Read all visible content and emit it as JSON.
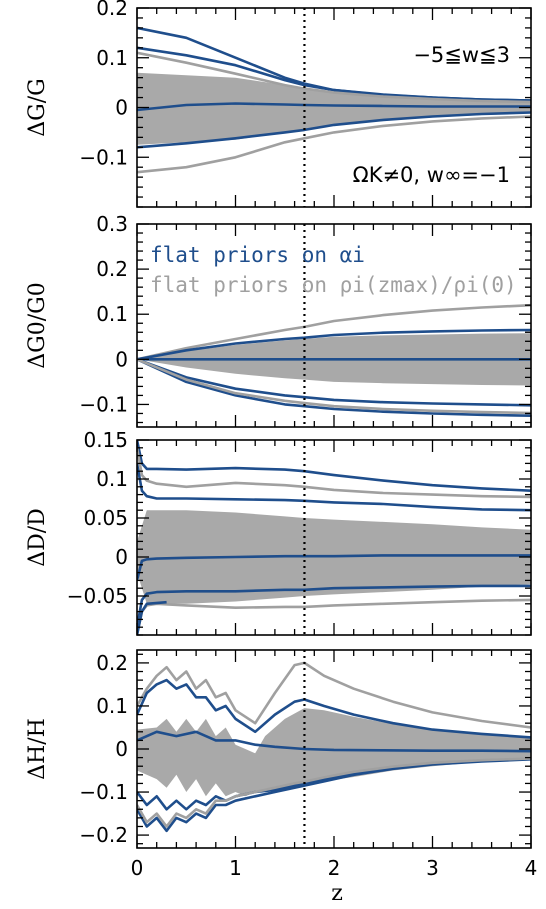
{
  "colors": {
    "blue": "#1f4e8c",
    "gray": "#a0a0a0",
    "band": "#a9a9a9",
    "axis": "#000000"
  },
  "chart_data": [
    {
      "type": "line",
      "ylabel": "ΔG/G",
      "xlabel": "",
      "xlim": [
        0,
        4
      ],
      "ylim": [
        -0.2,
        0.2
      ],
      "yticks": [
        -0.1,
        0,
        0.1,
        0.2
      ],
      "ytick_labels": [
        "−0.1",
        "0",
        "0.1",
        "0.2"
      ],
      "vline_z": 1.7,
      "annotations": [
        "−5≦w≦3",
        "ΩK≠0,  w∞=−1"
      ],
      "band": {
        "x": [
          0,
          0.5,
          1,
          1.5,
          1.7,
          2,
          2.5,
          3,
          3.5,
          4
        ],
        "lower": [
          -0.075,
          -0.07,
          -0.065,
          -0.05,
          -0.045,
          -0.035,
          -0.025,
          -0.02,
          -0.015,
          -0.012
        ],
        "upper": [
          0.07,
          0.065,
          0.06,
          0.045,
          0.04,
          0.03,
          0.022,
          0.018,
          0.014,
          0.012
        ]
      },
      "series": [
        {
          "color": "blue",
          "x": [
            0,
            0.5,
            1,
            1.5,
            1.7,
            2,
            2.5,
            3,
            3.5,
            4
          ],
          "y": [
            0.16,
            0.14,
            0.1,
            0.06,
            0.048,
            0.035,
            0.025,
            0.02,
            0.016,
            0.014
          ]
        },
        {
          "color": "blue",
          "x": [
            0,
            0.5,
            1,
            1.5,
            1.7,
            2,
            2.5,
            3,
            3.5,
            4
          ],
          "y": [
            0.12,
            0.105,
            0.085,
            0.055,
            0.045,
            0.035,
            0.026,
            0.02,
            0.016,
            0.014
          ]
        },
        {
          "color": "gray",
          "x": [
            0,
            0.5,
            1,
            1.5,
            1.7,
            2,
            2.5,
            3,
            3.5,
            4
          ],
          "y": [
            0.11,
            0.09,
            0.068,
            0.045,
            0.038,
            0.03,
            0.022,
            0.017,
            0.013,
            0.011
          ]
        },
        {
          "color": "blue",
          "x": [
            0,
            0.5,
            1,
            1.5,
            1.7,
            2,
            2.5,
            3,
            3.5,
            4
          ],
          "y": [
            -0.005,
            0.005,
            0.008,
            0.006,
            0.005,
            0.004,
            0.003,
            0.002,
            0.002,
            0.002
          ]
        },
        {
          "color": "blue",
          "x": [
            0,
            0.5,
            1,
            1.5,
            1.7,
            2,
            2.5,
            3,
            3.5,
            4
          ],
          "y": [
            -0.08,
            -0.072,
            -0.062,
            -0.05,
            -0.045,
            -0.035,
            -0.025,
            -0.018,
            -0.013,
            -0.01
          ]
        },
        {
          "color": "gray",
          "x": [
            0,
            0.5,
            1,
            1.5,
            1.7,
            2,
            2.5,
            3,
            3.5,
            4
          ],
          "y": [
            -0.13,
            -0.12,
            -0.1,
            -0.07,
            -0.062,
            -0.05,
            -0.037,
            -0.028,
            -0.022,
            -0.018
          ]
        }
      ]
    },
    {
      "type": "line",
      "ylabel": "ΔG0/G0",
      "xlabel": "",
      "xlim": [
        0,
        4
      ],
      "ylim": [
        -0.15,
        0.3
      ],
      "yticks": [
        -0.1,
        0,
        0.1,
        0.2,
        0.3
      ],
      "ytick_labels": [
        "−0.1",
        "0",
        "0.1",
        "0.2",
        "0.3"
      ],
      "vline_z": 1.7,
      "legend": [
        "flat priors on αi",
        "flat priors on ρi(zmax)/ρi(0)"
      ],
      "band": {
        "x": [
          0,
          0.5,
          1,
          1.5,
          1.7,
          2,
          2.5,
          3,
          3.5,
          4
        ],
        "lower": [
          0,
          -0.018,
          -0.032,
          -0.042,
          -0.045,
          -0.05,
          -0.053,
          -0.055,
          -0.057,
          -0.058
        ],
        "upper": [
          0,
          0.018,
          0.032,
          0.042,
          0.045,
          0.05,
          0.053,
          0.055,
          0.057,
          0.058
        ]
      },
      "series": [
        {
          "color": "gray",
          "x": [
            0,
            0.5,
            1,
            1.5,
            1.7,
            2,
            2.5,
            3,
            3.5,
            4
          ],
          "y": [
            0,
            0.025,
            0.045,
            0.065,
            0.072,
            0.085,
            0.098,
            0.108,
            0.115,
            0.12
          ]
        },
        {
          "color": "blue",
          "x": [
            0,
            0.5,
            1,
            1.5,
            1.7,
            2,
            2.5,
            3,
            3.5,
            4
          ],
          "y": [
            0,
            0.02,
            0.035,
            0.045,
            0.048,
            0.054,
            0.059,
            0.062,
            0.064,
            0.065
          ]
        },
        {
          "color": "blue",
          "x": [
            0,
            0.5,
            1,
            1.5,
            1.7,
            2,
            2.5,
            3,
            3.5,
            4
          ],
          "y": [
            0,
            0,
            0,
            0,
            0,
            0,
            0,
            0,
            0,
            0
          ]
        },
        {
          "color": "blue",
          "x": [
            0,
            0.5,
            1,
            1.5,
            1.7,
            2,
            2.5,
            3,
            3.5,
            4
          ],
          "y": [
            0,
            -0.04,
            -0.065,
            -0.08,
            -0.084,
            -0.09,
            -0.095,
            -0.098,
            -0.1,
            -0.102
          ]
        },
        {
          "color": "blue",
          "x": [
            0,
            0.5,
            1,
            1.5,
            1.7,
            2,
            2.5,
            3,
            3.5,
            4
          ],
          "y": [
            0,
            -0.05,
            -0.08,
            -0.1,
            -0.104,
            -0.11,
            -0.116,
            -0.12,
            -0.123,
            -0.125
          ]
        },
        {
          "color": "gray",
          "x": [
            0,
            0.5,
            1,
            1.5,
            1.7,
            2,
            2.5,
            3,
            3.5,
            4
          ],
          "y": [
            0,
            -0.045,
            -0.075,
            -0.092,
            -0.097,
            -0.104,
            -0.11,
            -0.114,
            -0.117,
            -0.119
          ]
        }
      ]
    },
    {
      "type": "line",
      "ylabel": "ΔD/D",
      "xlabel": "",
      "xlim": [
        0,
        4
      ],
      "ylim": [
        -0.1,
        0.15
      ],
      "yticks": [
        -0.05,
        0,
        0.05,
        0.1,
        0.15
      ],
      "ytick_labels": [
        "−0.05",
        "0",
        "0.05",
        "0.1",
        "0.15"
      ],
      "vline_z": 1.7,
      "band": {
        "x": [
          0,
          0.1,
          0.5,
          1,
          1.5,
          1.7,
          2,
          2.5,
          3,
          3.5,
          4
        ],
        "lower": [
          -0.02,
          -0.06,
          -0.06,
          -0.057,
          -0.052,
          -0.05,
          -0.048,
          -0.045,
          -0.042,
          -0.038,
          -0.035
        ],
        "upper": [
          0.02,
          0.06,
          0.06,
          0.057,
          0.052,
          0.05,
          0.048,
          0.045,
          0.042,
          0.038,
          0.035
        ]
      },
      "series": [
        {
          "color": "blue",
          "x": [
            0,
            0.05,
            0.1,
            0.2,
            0.5,
            1,
            1.5,
            1.7,
            2,
            2.5,
            3,
            3.5,
            4
          ],
          "y": [
            0.15,
            0.12,
            0.113,
            0.113,
            0.112,
            0.114,
            0.112,
            0.11,
            0.105,
            0.098,
            0.092,
            0.088,
            0.085
          ]
        },
        {
          "color": "gray",
          "x": [
            0,
            0.05,
            0.1,
            0.2,
            0.5,
            1,
            1.5,
            1.7,
            2,
            2.5,
            3,
            3.5,
            4
          ],
          "y": [
            0.14,
            0.105,
            0.098,
            0.094,
            0.09,
            0.095,
            0.092,
            0.09,
            0.086,
            0.082,
            0.08,
            0.078,
            0.077
          ]
        },
        {
          "color": "blue",
          "x": [
            0,
            0.05,
            0.1,
            0.2,
            0.5,
            1,
            1.5,
            1.7,
            2,
            2.5,
            3,
            3.5,
            4
          ],
          "y": [
            0.12,
            0.085,
            0.078,
            0.075,
            0.075,
            0.074,
            0.073,
            0.072,
            0.07,
            0.068,
            0.064,
            0.061,
            0.06
          ]
        },
        {
          "color": "blue",
          "x": [
            0,
            0.05,
            0.1,
            0.2,
            0.5,
            1,
            1.5,
            1.7,
            2,
            2.5,
            3,
            3.5,
            4
          ],
          "y": [
            -0.03,
            -0.005,
            -0.003,
            -0.002,
            -0.001,
            0,
            0.001,
            0.001,
            0.001,
            0.002,
            0.002,
            0.002,
            0.002
          ]
        },
        {
          "color": "blue",
          "x": [
            0,
            0.05,
            0.1,
            0.2,
            0.5,
            1,
            1.5,
            1.7,
            2,
            2.5,
            3,
            3.5,
            4
          ],
          "y": [
            -0.09,
            -0.055,
            -0.047,
            -0.045,
            -0.044,
            -0.044,
            -0.042,
            -0.042,
            -0.04,
            -0.039,
            -0.038,
            -0.037,
            -0.037
          ]
        },
        {
          "color": "gray",
          "x": [
            0,
            0.05,
            0.1,
            0.2,
            0.5,
            1,
            1.5,
            1.7,
            2,
            2.5,
            3,
            3.5,
            4
          ],
          "y": [
            -0.1,
            -0.07,
            -0.062,
            -0.06,
            -0.062,
            -0.065,
            -0.064,
            -0.064,
            -0.062,
            -0.06,
            -0.058,
            -0.056,
            -0.055
          ]
        },
        {
          "color": "blue",
          "x": [
            0,
            0.05,
            0.1,
            0.3
          ],
          "y": [
            -0.1,
            -0.07,
            -0.06,
            -0.058
          ]
        }
      ]
    },
    {
      "type": "line",
      "ylabel": "ΔH/H",
      "xlabel": "z",
      "xlim": [
        0,
        4
      ],
      "ylim": [
        -0.23,
        0.23
      ],
      "xticks": [
        0,
        1,
        2,
        3,
        4
      ],
      "xtick_labels": [
        "0",
        "1",
        "2",
        "3",
        "4"
      ],
      "yticks": [
        -0.2,
        -0.1,
        0,
        0.1,
        0.2
      ],
      "ytick_labels": [
        "−0.2",
        "−0.1",
        "0",
        "0.1",
        "0.2"
      ],
      "vline_z": 1.7,
      "band": {
        "x": [
          0,
          0.2,
          0.3,
          0.4,
          0.5,
          0.6,
          0.7,
          0.8,
          0.9,
          1.0,
          1.1,
          1.2,
          1.3,
          1.5,
          1.7,
          1.9,
          2.2,
          2.6,
          3,
          3.5,
          4
        ],
        "lower": [
          -0.05,
          -0.07,
          -0.09,
          -0.06,
          -0.1,
          -0.07,
          -0.11,
          -0.08,
          -0.11,
          -0.1,
          -0.11,
          -0.1,
          -0.1,
          -0.095,
          -0.085,
          -0.075,
          -0.065,
          -0.05,
          -0.04,
          -0.03,
          -0.025
        ],
        "upper": [
          0.045,
          0.05,
          0.07,
          0.04,
          0.07,
          0.04,
          0.07,
          0.03,
          0.05,
          0.01,
          0.0,
          -0.01,
          0.03,
          0.07,
          0.095,
          0.09,
          0.075,
          0.058,
          0.045,
          0.035,
          0.028
        ]
      },
      "series": [
        {
          "color": "gray",
          "x": [
            0,
            0.1,
            0.2,
            0.3,
            0.4,
            0.5,
            0.6,
            0.7,
            0.8,
            0.9,
            1,
            1.2,
            1.4,
            1.6,
            1.7,
            1.9,
            2.2,
            2.6,
            3,
            3.5,
            4
          ],
          "y": [
            0.1,
            0.14,
            0.17,
            0.19,
            0.16,
            0.18,
            0.14,
            0.16,
            0.12,
            0.13,
            0.09,
            0.06,
            0.13,
            0.195,
            0.2,
            0.17,
            0.14,
            0.11,
            0.085,
            0.065,
            0.05
          ]
        },
        {
          "color": "blue",
          "x": [
            0,
            0.1,
            0.2,
            0.3,
            0.4,
            0.5,
            0.6,
            0.7,
            0.8,
            0.9,
            1,
            1.2,
            1.4,
            1.6,
            1.7,
            1.9,
            2.2,
            2.6,
            3,
            3.5,
            4
          ],
          "y": [
            0.08,
            0.13,
            0.15,
            0.16,
            0.14,
            0.15,
            0.12,
            0.12,
            0.09,
            0.1,
            0.07,
            0.04,
            0.08,
            0.11,
            0.115,
            0.1,
            0.08,
            0.06,
            0.045,
            0.035,
            0.027
          ]
        },
        {
          "color": "blue",
          "x": [
            0,
            0.2,
            0.4,
            0.6,
            0.8,
            1,
            1.2,
            1.4,
            1.7,
            2,
            2.5,
            3,
            3.5,
            4
          ],
          "y": [
            0.02,
            0.04,
            0.03,
            0.04,
            0.02,
            0.02,
            0.01,
            0.005,
            0.0,
            -0.002,
            -0.003,
            -0.004,
            -0.004,
            -0.005
          ]
        },
        {
          "color": "blue",
          "x": [
            0,
            0.1,
            0.2,
            0.3,
            0.4,
            0.5,
            0.6,
            0.7,
            0.8,
            0.9,
            1,
            1.2,
            1.4,
            1.6,
            1.7,
            1.9,
            2.2,
            2.6,
            3,
            3.5,
            4
          ],
          "y": [
            -0.1,
            -0.13,
            -0.11,
            -0.14,
            -0.12,
            -0.14,
            -0.12,
            -0.13,
            -0.11,
            -0.12,
            -0.11,
            -0.1,
            -0.095,
            -0.085,
            -0.08,
            -0.07,
            -0.055,
            -0.042,
            -0.033,
            -0.027,
            -0.023
          ]
        },
        {
          "color": "blue",
          "x": [
            0,
            0.1,
            0.2,
            0.3,
            0.4,
            0.5,
            0.6,
            0.7,
            0.8,
            0.9,
            1,
            1.2,
            1.4,
            1.6,
            1.7,
            1.9,
            2.2,
            2.6,
            3,
            3.5,
            4
          ],
          "y": [
            -0.14,
            -0.18,
            -0.16,
            -0.19,
            -0.16,
            -0.17,
            -0.15,
            -0.16,
            -0.13,
            -0.13,
            -0.12,
            -0.11,
            -0.1,
            -0.09,
            -0.085,
            -0.075,
            -0.06,
            -0.046,
            -0.036,
            -0.029,
            -0.024
          ]
        },
        {
          "color": "gray",
          "x": [
            0,
            0.1,
            0.2,
            0.3,
            0.4,
            0.5,
            0.6,
            0.7,
            0.8,
            0.9,
            1,
            1.2,
            1.4,
            1.6,
            1.7,
            1.9,
            2.2,
            2.6,
            3,
            3.5,
            4
          ],
          "y": [
            -0.13,
            -0.17,
            -0.15,
            -0.18,
            -0.15,
            -0.16,
            -0.14,
            -0.15,
            -0.12,
            -0.12,
            -0.11,
            -0.1,
            -0.09,
            -0.08,
            -0.076,
            -0.066,
            -0.053,
            -0.041,
            -0.032,
            -0.026,
            -0.022
          ]
        }
      ]
    }
  ]
}
